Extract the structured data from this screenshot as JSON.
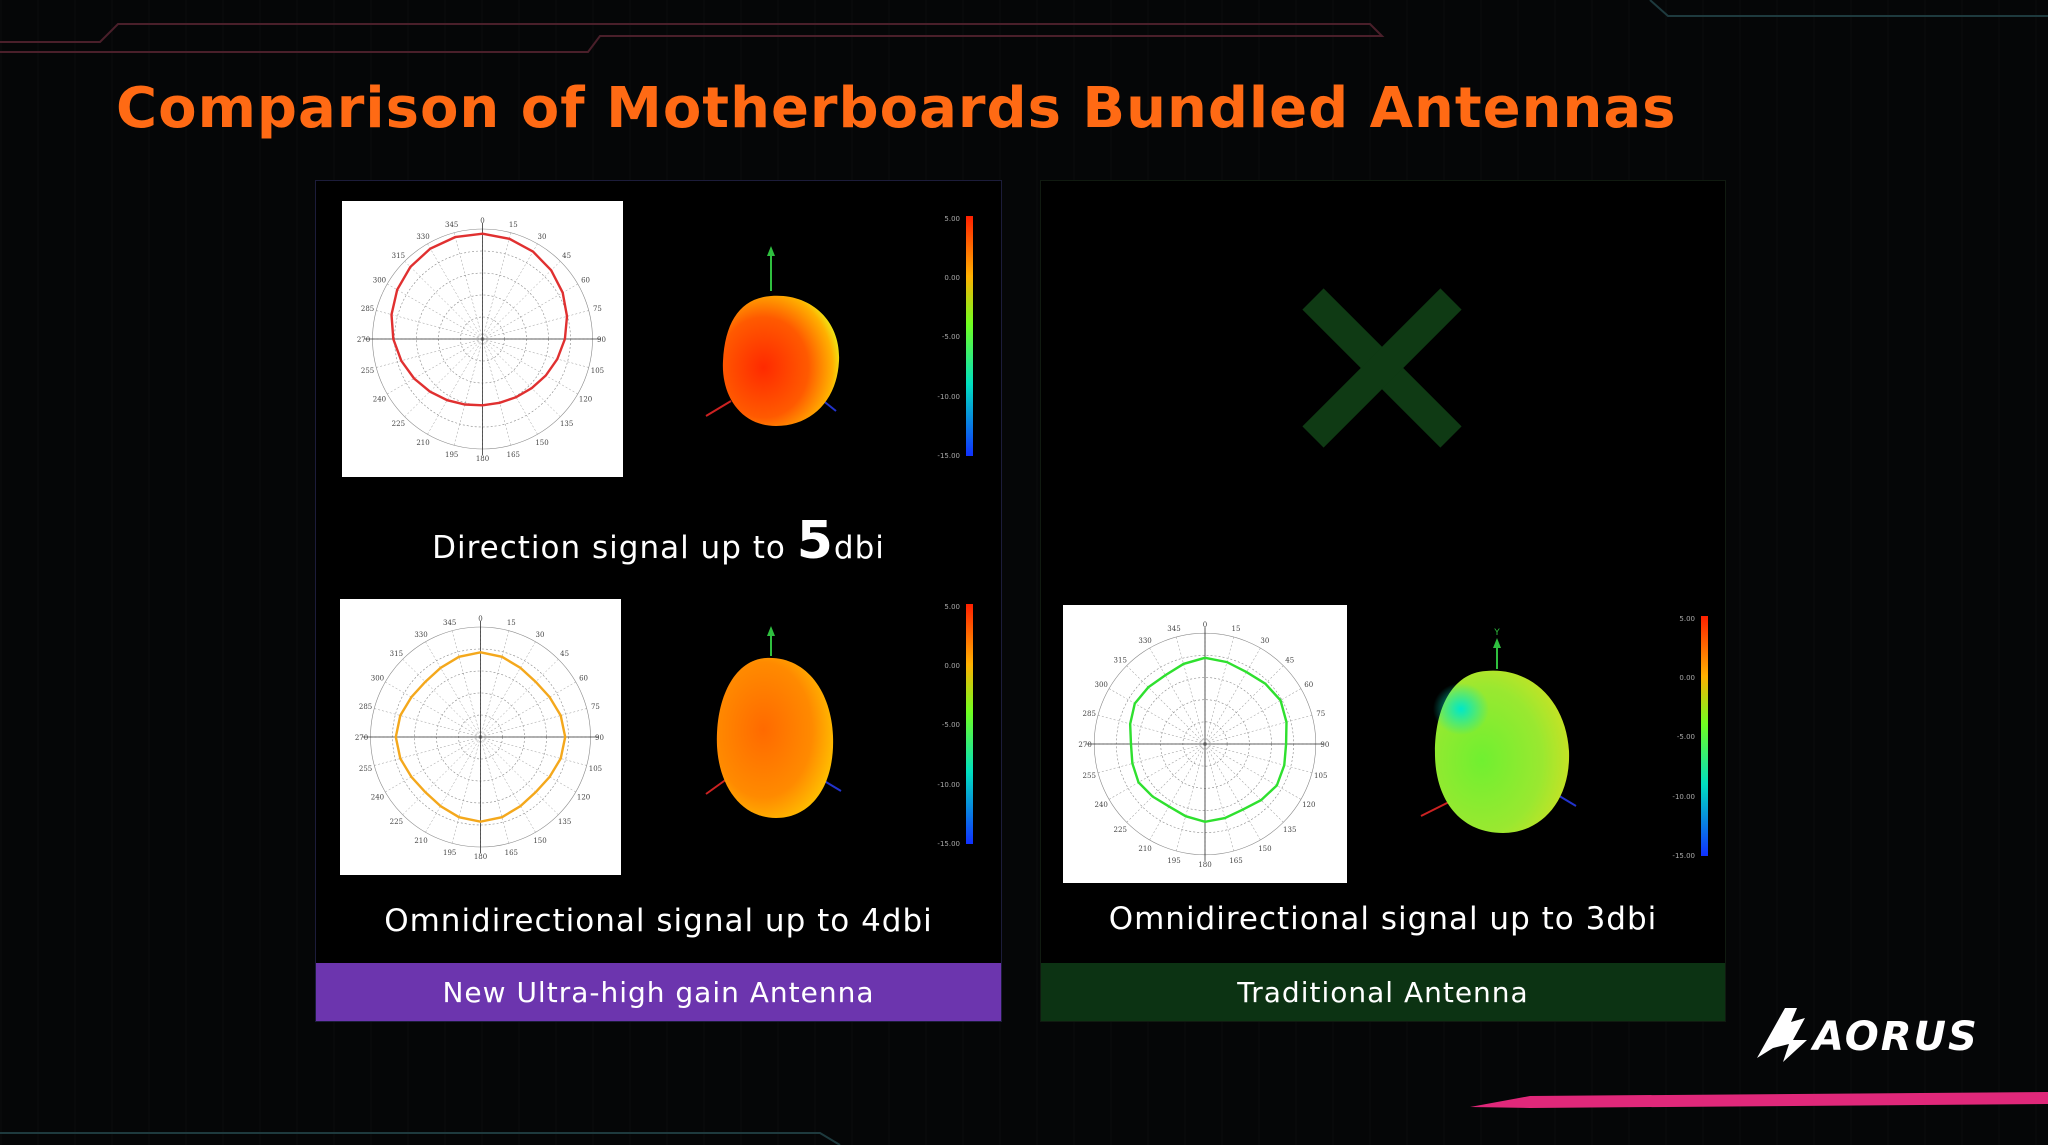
{
  "slide": {
    "title": "Comparison of Motherboards Bundled Antennas"
  },
  "new_antenna": {
    "footer_label": "New Ultra-high gain Antenna",
    "footer_color": "#6c35ae",
    "direction": {
      "caption_prefix": "Direction signal up to ",
      "caption_value": "5",
      "caption_unit": "dbi",
      "pattern_color": "#e03030"
    },
    "omni": {
      "caption": "Omnidirectional signal up to 4dbi",
      "pattern_color": "#f4a81c"
    }
  },
  "traditional_antenna": {
    "footer_label": "Traditional Antenna",
    "footer_color": "#0c3313",
    "omni": {
      "caption": "Omnidirectional signal up to 3dbi",
      "pattern_color": "#2fe02f"
    },
    "direction_missing_icon": "cross-icon"
  },
  "scale_labels": [
    "5.00",
    "0.00",
    "-5.00",
    "-10.00",
    "-15.00"
  ],
  "angle_labels": [
    "0",
    "15",
    "30",
    "45",
    "60",
    "75",
    "90",
    "105",
    "120",
    "135",
    "150",
    "165",
    "180",
    "195",
    "210",
    "225",
    "240",
    "255",
    "270",
    "285",
    "300",
    "315",
    "330",
    "345"
  ],
  "brand": {
    "logo_text": "AORUS"
  }
}
